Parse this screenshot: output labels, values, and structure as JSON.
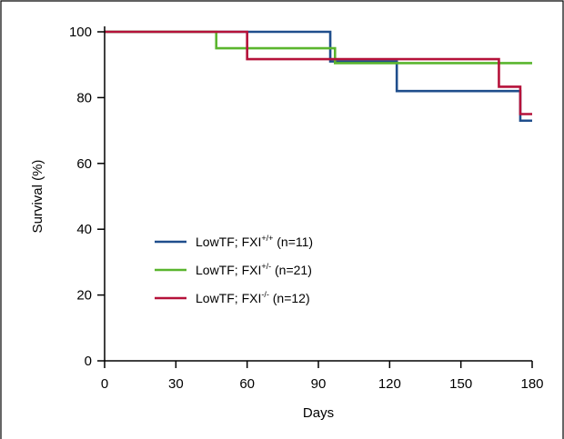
{
  "chart_data": {
    "type": "line",
    "step": true,
    "xlabel": "Days",
    "ylabel": "Survival (%)",
    "xlim": [
      0,
      180
    ],
    "ylim": [
      0,
      100
    ],
    "xticks": [
      0,
      30,
      60,
      90,
      120,
      150,
      180
    ],
    "yticks": [
      0,
      20,
      40,
      60,
      80,
      100
    ],
    "grid": false,
    "legend_position": "center-left",
    "series": [
      {
        "name": "LowTF; FXI+/+ (n=11)",
        "label_base": "LowTF; FXI",
        "label_sup": "+/+",
        "label_suffix": " (n=11)",
        "color": "#1f4e8c",
        "x": [
          0,
          95,
          123,
          175,
          180
        ],
        "y": [
          100,
          91,
          82,
          73,
          73
        ]
      },
      {
        "name": "LowTF; FXI+/- (n=21)",
        "label_base": "LowTF; FXI",
        "label_sup": "+/-",
        "label_suffix": " (n=21)",
        "color": "#5ab52e",
        "x": [
          0,
          47,
          97,
          180
        ],
        "y": [
          100,
          95,
          90.5,
          90.5
        ]
      },
      {
        "name": "LowTF; FXI-/- (n=12)",
        "label_base": "LowTF; FXI",
        "label_sup": "-/-",
        "label_suffix": " (n=12)",
        "color": "#b5123a",
        "x": [
          0,
          60,
          166,
          175,
          180
        ],
        "y": [
          100,
          91.7,
          83.3,
          75,
          75
        ]
      }
    ]
  }
}
